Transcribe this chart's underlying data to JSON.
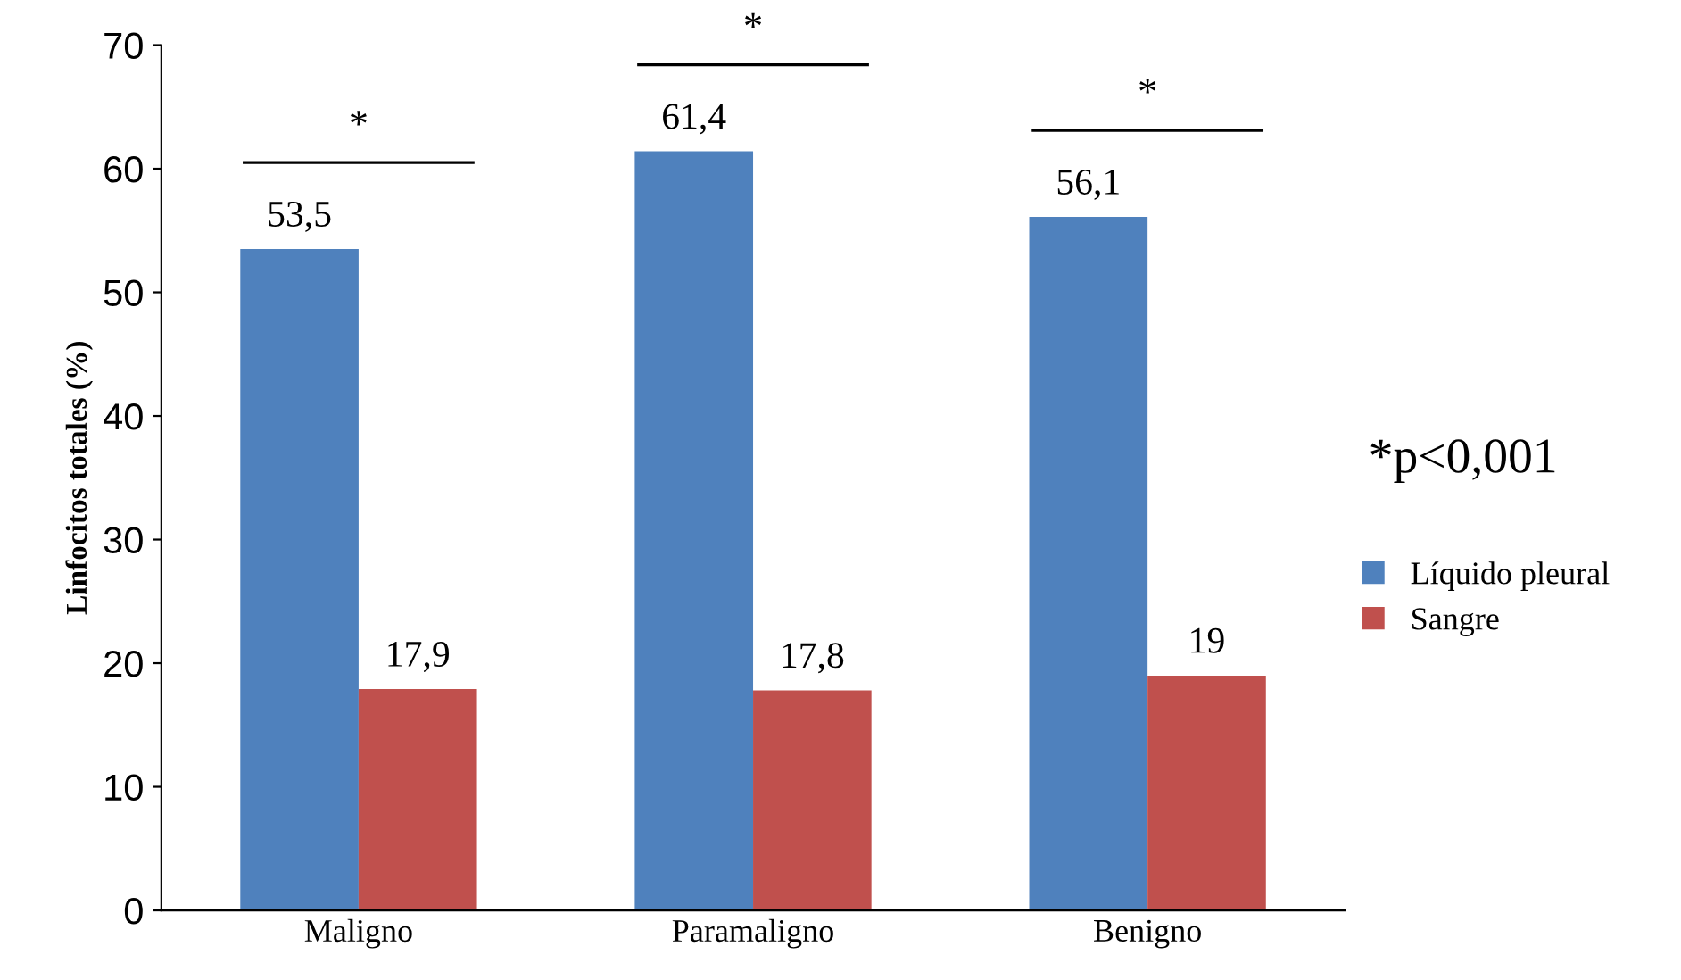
{
  "chart_data": {
    "type": "bar",
    "ylabel": "Linfocitos totales (%)",
    "categories": [
      "Maligno",
      "Paramaligno",
      "Benigno"
    ],
    "series": [
      {
        "name": "Líquido pleural",
        "color": "#4f81bd",
        "values": [
          53.5,
          61.4,
          56.1
        ],
        "value_labels": [
          "53,5",
          "61,4",
          "56,1"
        ]
      },
      {
        "name": "Sangre",
        "color": "#c0504d",
        "values": [
          17.9,
          17.8,
          19
        ],
        "value_labels": [
          "17,9",
          "17,8",
          "19"
        ]
      }
    ],
    "ylim": [
      0,
      70
    ],
    "yticks": [
      0,
      10,
      20,
      30,
      40,
      50,
      60,
      70
    ],
    "grid": false,
    "legend": "right",
    "annotations": [
      "*",
      "*",
      "*",
      "*p<0,001"
    ]
  }
}
